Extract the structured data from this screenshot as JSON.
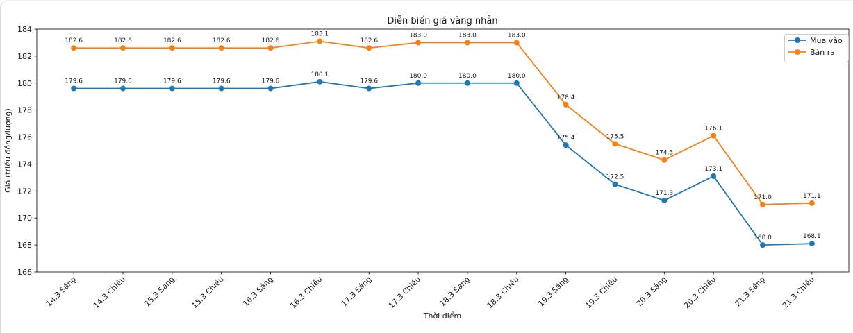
{
  "chart_data": {
    "type": "line",
    "title": "Diễn biến giá vàng nhẫn",
    "xlabel": "Thời điểm",
    "ylabel": "Giá (triệu đồng/lượng)",
    "categories": [
      "14.3 Sáng",
      "14.3 Chiều",
      "15.3 Sáng",
      "15.3 Chiều",
      "16.3 Sáng",
      "16.3 Chiều",
      "17.3 Sáng",
      "17.3 Chiều",
      "18.3 Sáng",
      "18.3 Chiều",
      "19.3 Sáng",
      "19.3 Chiều",
      "20.3 Sáng",
      "20.3 Chiều",
      "21.3 Sáng",
      "21.3 Chiều"
    ],
    "series": [
      {
        "name": "Mua vào",
        "color": "#1f77b4",
        "values": [
          179.6,
          179.6,
          179.6,
          179.6,
          179.6,
          180.1,
          179.6,
          180.0,
          180.0,
          180.0,
          175.4,
          172.5,
          171.3,
          173.1,
          168.0,
          168.1
        ]
      },
      {
        "name": "Bán ra",
        "color": "#ff7f0e",
        "values": [
          182.6,
          182.6,
          182.6,
          182.6,
          182.6,
          183.1,
          182.6,
          183.0,
          183.0,
          183.0,
          178.4,
          175.5,
          174.3,
          176.1,
          171.0,
          171.1
        ]
      }
    ],
    "ylim": [
      166,
      184
    ],
    "yticks": [
      166,
      168,
      170,
      172,
      174,
      176,
      178,
      180,
      182,
      184
    ],
    "x_tick_rotation": 45,
    "marker": "o",
    "grid": false,
    "legend_position": "upper right",
    "value_labels_decimals": 1,
    "spine_color": "#000000",
    "legend_border_color": "#cccccc"
  }
}
